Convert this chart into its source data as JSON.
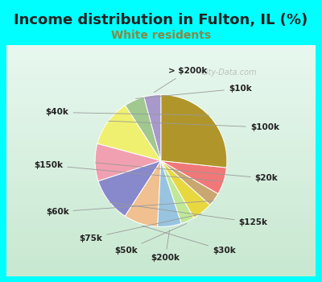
{
  "title": "Income distribution in Fulton, IL (%)",
  "subtitle": "White residents",
  "background_color": "#00ffff",
  "chart_bg_top": "#e8f8f5",
  "chart_bg_bottom": "#d0ead0",
  "labels": [
    "> $200k",
    "$10k",
    "$100k",
    "$20k",
    "$125k",
    "$30k",
    "$200k",
    "$50k",
    "$75k",
    "$60k",
    "$150k",
    "$40k"
  ],
  "values": [
    5,
    6,
    14,
    11,
    13,
    10,
    7,
    4,
    6,
    4,
    8,
    32
  ],
  "colors": [
    "#a898cc",
    "#a0c890",
    "#f0f070",
    "#f0a0b0",
    "#8888cc",
    "#f0c090",
    "#98c4e0",
    "#c0e898",
    "#e8d840",
    "#c8a870",
    "#f07878",
    "#b0962a"
  ],
  "startangle": 90,
  "label_fontsize": 7.5,
  "title_fontsize": 13,
  "subtitle_fontsize": 10,
  "title_color": "#222222",
  "subtitle_color": "#888844",
  "label_color": "#222222"
}
